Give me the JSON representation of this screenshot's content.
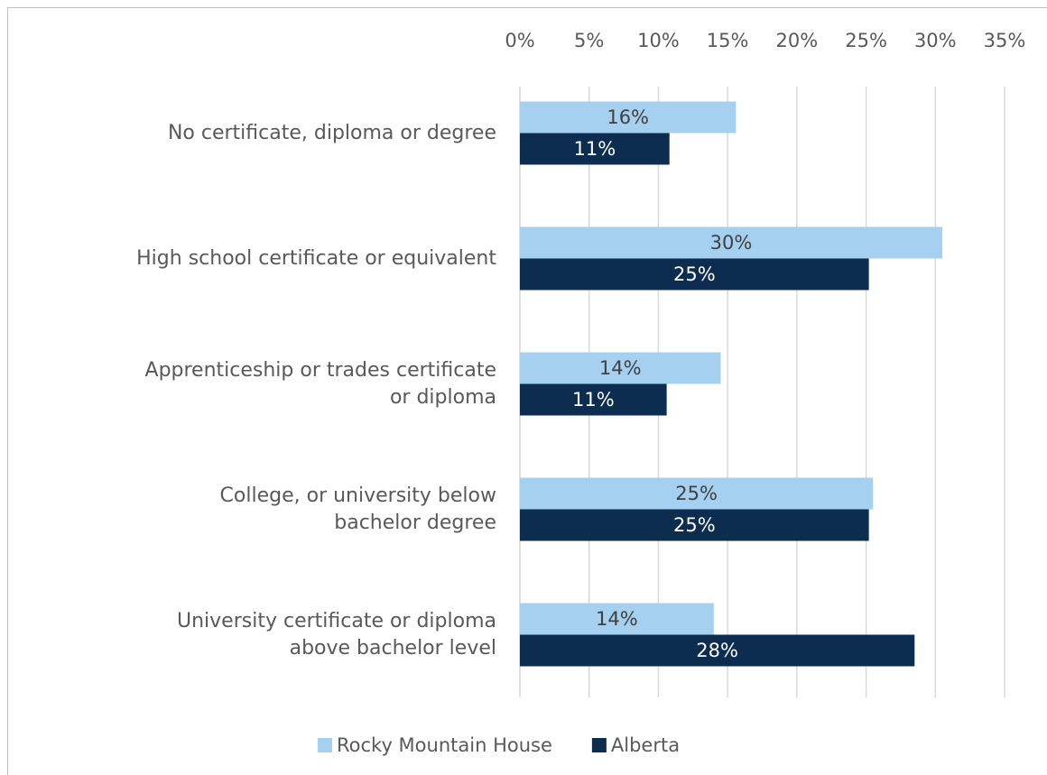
{
  "chart_data": {
    "type": "barh",
    "categories": [
      "No certificate, diploma or degree",
      "High school certificate or equivalent",
      "Apprenticeship or trades certificate\nor diploma",
      "College, or university below\nbachelor degree",
      "University certificate or diploma\nabove bachelor level"
    ],
    "series": [
      {
        "name": "Rocky Mountain House",
        "color": "#a6d0f0",
        "values": [
          15.6,
          30.5,
          14.5,
          25.5,
          14.0
        ],
        "value_labels": [
          "16%",
          "30%",
          "14%",
          "25%",
          "14%"
        ]
      },
      {
        "name": "Alberta",
        "color": "#0c2d50",
        "values": [
          10.8,
          25.2,
          10.6,
          25.2,
          28.5
        ],
        "value_labels": [
          "11%",
          "25%",
          "11%",
          "25%",
          "28%"
        ]
      }
    ],
    "xlim": [
      0,
      35
    ],
    "xticks": [
      {
        "value": 0,
        "label": "0%"
      },
      {
        "value": 5,
        "label": "5%"
      },
      {
        "value": 10,
        "label": "10%"
      },
      {
        "value": 15,
        "label": "15%"
      },
      {
        "value": 20,
        "label": "20%"
      },
      {
        "value": 25,
        "label": "25%"
      },
      {
        "value": 30,
        "label": "30%"
      },
      {
        "value": 35,
        "label": "35%"
      }
    ],
    "grid": true,
    "legend": "bottom"
  }
}
